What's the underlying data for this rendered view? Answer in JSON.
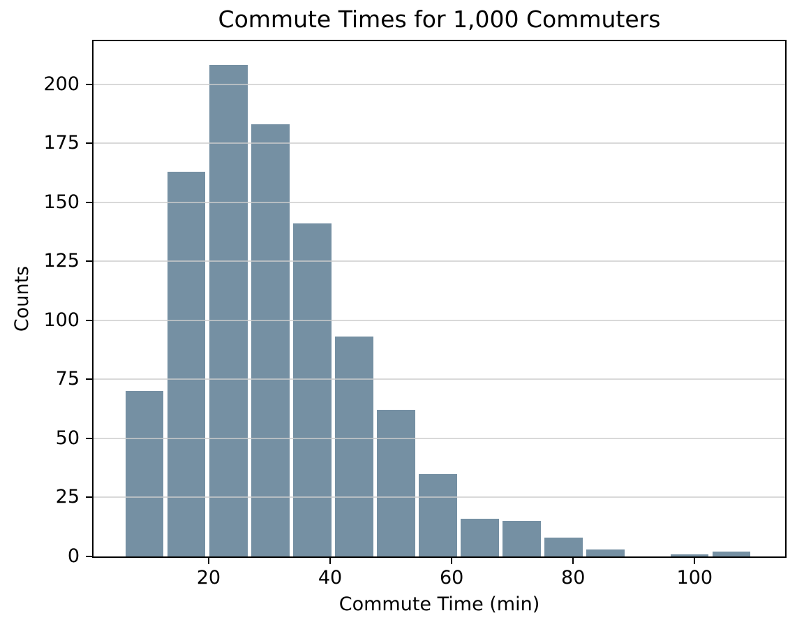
{
  "chart_data": {
    "type": "bar",
    "subtype": "histogram",
    "title": "Commute Times for 1,000 Commuters",
    "xlabel": "Commute Time (min)",
    "ylabel": "Counts",
    "bin_edges": [
      6.0,
      12.9,
      19.8,
      26.7,
      33.6,
      40.5,
      47.4,
      54.3,
      61.2,
      68.1,
      75.0,
      81.9,
      88.8,
      95.7,
      102.6,
      109.5
    ],
    "counts": [
      70,
      163,
      208,
      183,
      141,
      93,
      62,
      35,
      16,
      15,
      8,
      3,
      0,
      1,
      2
    ],
    "total_count": 1000,
    "xticks": [
      20,
      40,
      60,
      80,
      100
    ],
    "yticks": [
      0,
      25,
      50,
      75,
      100,
      125,
      150,
      175,
      200
    ],
    "xlim": [
      1.05,
      114.9
    ],
    "ylim": [
      0,
      218.2
    ],
    "grid": "horizontal",
    "grid_above_bars": true,
    "relative_bar_width": 0.91,
    "bar_color": "#7590a3",
    "grid_color": "#cccccc",
    "axis_color": "#000000",
    "background_color": "#ffffff",
    "legend": "none"
  }
}
